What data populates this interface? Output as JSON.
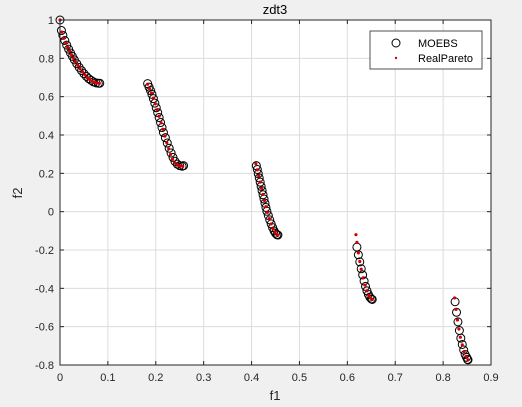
{
  "chart_data": {
    "type": "scatter",
    "title": "zdt3",
    "xlabel": "f1",
    "ylabel": "f2",
    "xlim": [
      0,
      0.9
    ],
    "ylim": [
      -0.8,
      1
    ],
    "xticks": [
      0,
      0.1,
      0.2,
      0.3,
      0.4,
      0.5,
      0.6,
      0.7,
      0.8,
      0.9
    ],
    "yticks": [
      -0.8,
      -0.6,
      -0.4,
      -0.2,
      0,
      0.2,
      0.4,
      0.6,
      0.8,
      1
    ],
    "xtick_labels": [
      "0",
      "0.1",
      "0.2",
      "0.3",
      "0.4",
      "0.5",
      "0.6",
      "0.7",
      "0.8",
      "0.9"
    ],
    "ytick_labels": [
      "-0.8",
      "-0.6",
      "-0.4",
      "-0.2",
      "0",
      "0.2",
      "0.4",
      "0.6",
      "0.8",
      "1"
    ],
    "grid": true,
    "legend_position": "top-right",
    "series": [
      {
        "name": "MOEBS",
        "marker": "circle",
        "color": "#000000",
        "points": [
          [
            0.0,
            1.0
          ],
          [
            0.003,
            0.945
          ],
          [
            0.006,
            0.92
          ],
          [
            0.01,
            0.893
          ],
          [
            0.014,
            0.869
          ],
          [
            0.018,
            0.848
          ],
          [
            0.022,
            0.828
          ],
          [
            0.026,
            0.81
          ],
          [
            0.03,
            0.792
          ],
          [
            0.035,
            0.772
          ],
          [
            0.04,
            0.753
          ],
          [
            0.045,
            0.736
          ],
          [
            0.05,
            0.72
          ],
          [
            0.055,
            0.706
          ],
          [
            0.06,
            0.694
          ],
          [
            0.065,
            0.685
          ],
          [
            0.07,
            0.677
          ],
          [
            0.075,
            0.672
          ],
          [
            0.08,
            0.67
          ],
          [
            0.083,
            0.67
          ],
          [
            0.183,
            0.668
          ],
          [
            0.186,
            0.65
          ],
          [
            0.189,
            0.632
          ],
          [
            0.192,
            0.612
          ],
          [
            0.195,
            0.59
          ],
          [
            0.198,
            0.566
          ],
          [
            0.201,
            0.542
          ],
          [
            0.204,
            0.517
          ],
          [
            0.207,
            0.491
          ],
          [
            0.21,
            0.465
          ],
          [
            0.213,
            0.439
          ],
          [
            0.216,
            0.413
          ],
          [
            0.22,
            0.386
          ],
          [
            0.224,
            0.358
          ],
          [
            0.228,
            0.331
          ],
          [
            0.232,
            0.306
          ],
          [
            0.236,
            0.283
          ],
          [
            0.24,
            0.263
          ],
          [
            0.245,
            0.248
          ],
          [
            0.25,
            0.24
          ],
          [
            0.255,
            0.237
          ],
          [
            0.258,
            0.24
          ],
          [
            0.41,
            0.24
          ],
          [
            0.412,
            0.22
          ],
          [
            0.414,
            0.198
          ],
          [
            0.416,
            0.176
          ],
          [
            0.418,
            0.154
          ],
          [
            0.42,
            0.132
          ],
          [
            0.422,
            0.11
          ],
          [
            0.424,
            0.088
          ],
          [
            0.426,
            0.066
          ],
          [
            0.428,
            0.044
          ],
          [
            0.43,
            0.022
          ],
          [
            0.432,
            0.002
          ],
          [
            0.435,
            -0.02
          ],
          [
            0.438,
            -0.043
          ],
          [
            0.441,
            -0.064
          ],
          [
            0.444,
            -0.083
          ],
          [
            0.447,
            -0.1
          ],
          [
            0.45,
            -0.112
          ],
          [
            0.453,
            -0.12
          ],
          [
            0.455,
            -0.122
          ],
          [
            0.62,
            -0.185
          ],
          [
            0.623,
            -0.225
          ],
          [
            0.626,
            -0.262
          ],
          [
            0.629,
            -0.298
          ],
          [
            0.632,
            -0.33
          ],
          [
            0.635,
            -0.362
          ],
          [
            0.638,
            -0.39
          ],
          [
            0.641,
            -0.413
          ],
          [
            0.644,
            -0.432
          ],
          [
            0.647,
            -0.446
          ],
          [
            0.65,
            -0.455
          ],
          [
            0.652,
            -0.458
          ],
          [
            0.825,
            -0.47
          ],
          [
            0.828,
            -0.525
          ],
          [
            0.831,
            -0.575
          ],
          [
            0.834,
            -0.62
          ],
          [
            0.837,
            -0.66
          ],
          [
            0.84,
            -0.693
          ],
          [
            0.843,
            -0.722
          ],
          [
            0.846,
            -0.745
          ],
          [
            0.849,
            -0.76
          ],
          [
            0.851,
            -0.771
          ],
          [
            0.852,
            -0.773
          ]
        ]
      },
      {
        "name": "RealPareto",
        "marker": "dot",
        "color": "#d40000",
        "points": [
          [
            0.0,
            1.0
          ],
          [
            0.004,
            0.937
          ],
          [
            0.008,
            0.905
          ],
          [
            0.012,
            0.88
          ],
          [
            0.016,
            0.858
          ],
          [
            0.02,
            0.838
          ],
          [
            0.024,
            0.819
          ],
          [
            0.028,
            0.801
          ],
          [
            0.032,
            0.783
          ],
          [
            0.037,
            0.764
          ],
          [
            0.042,
            0.746
          ],
          [
            0.047,
            0.729
          ],
          [
            0.052,
            0.714
          ],
          [
            0.057,
            0.7
          ],
          [
            0.062,
            0.69
          ],
          [
            0.067,
            0.681
          ],
          [
            0.072,
            0.675
          ],
          [
            0.077,
            0.671
          ],
          [
            0.082,
            0.67
          ],
          [
            0.183,
            0.665
          ],
          [
            0.187,
            0.642
          ],
          [
            0.191,
            0.619
          ],
          [
            0.195,
            0.592
          ],
          [
            0.199,
            0.563
          ],
          [
            0.203,
            0.531
          ],
          [
            0.207,
            0.498
          ],
          [
            0.211,
            0.464
          ],
          [
            0.215,
            0.43
          ],
          [
            0.219,
            0.394
          ],
          [
            0.223,
            0.36
          ],
          [
            0.227,
            0.328
          ],
          [
            0.231,
            0.299
          ],
          [
            0.235,
            0.274
          ],
          [
            0.24,
            0.255
          ],
          [
            0.245,
            0.244
          ],
          [
            0.25,
            0.239
          ],
          [
            0.256,
            0.237
          ],
          [
            0.409,
            0.25
          ],
          [
            0.412,
            0.218
          ],
          [
            0.415,
            0.186
          ],
          [
            0.418,
            0.154
          ],
          [
            0.421,
            0.122
          ],
          [
            0.424,
            0.09
          ],
          [
            0.427,
            0.058
          ],
          [
            0.43,
            0.026
          ],
          [
            0.433,
            -0.004
          ],
          [
            0.437,
            -0.036
          ],
          [
            0.441,
            -0.064
          ],
          [
            0.445,
            -0.089
          ],
          [
            0.449,
            -0.108
          ],
          [
            0.453,
            -0.119
          ],
          [
            0.455,
            -0.122
          ],
          [
            0.618,
            -0.12
          ],
          [
            0.62,
            -0.16
          ],
          [
            0.623,
            -0.215
          ],
          [
            0.626,
            -0.26
          ],
          [
            0.629,
            -0.3
          ],
          [
            0.633,
            -0.345
          ],
          [
            0.637,
            -0.383
          ],
          [
            0.641,
            -0.413
          ],
          [
            0.645,
            -0.437
          ],
          [
            0.649,
            -0.452
          ],
          [
            0.652,
            -0.458
          ],
          [
            0.824,
            -0.45
          ],
          [
            0.827,
            -0.51
          ],
          [
            0.83,
            -0.565
          ],
          [
            0.833,
            -0.612
          ],
          [
            0.836,
            -0.655
          ],
          [
            0.84,
            -0.695
          ],
          [
            0.844,
            -0.73
          ],
          [
            0.848,
            -0.755
          ],
          [
            0.852,
            -0.773
          ]
        ]
      }
    ]
  }
}
